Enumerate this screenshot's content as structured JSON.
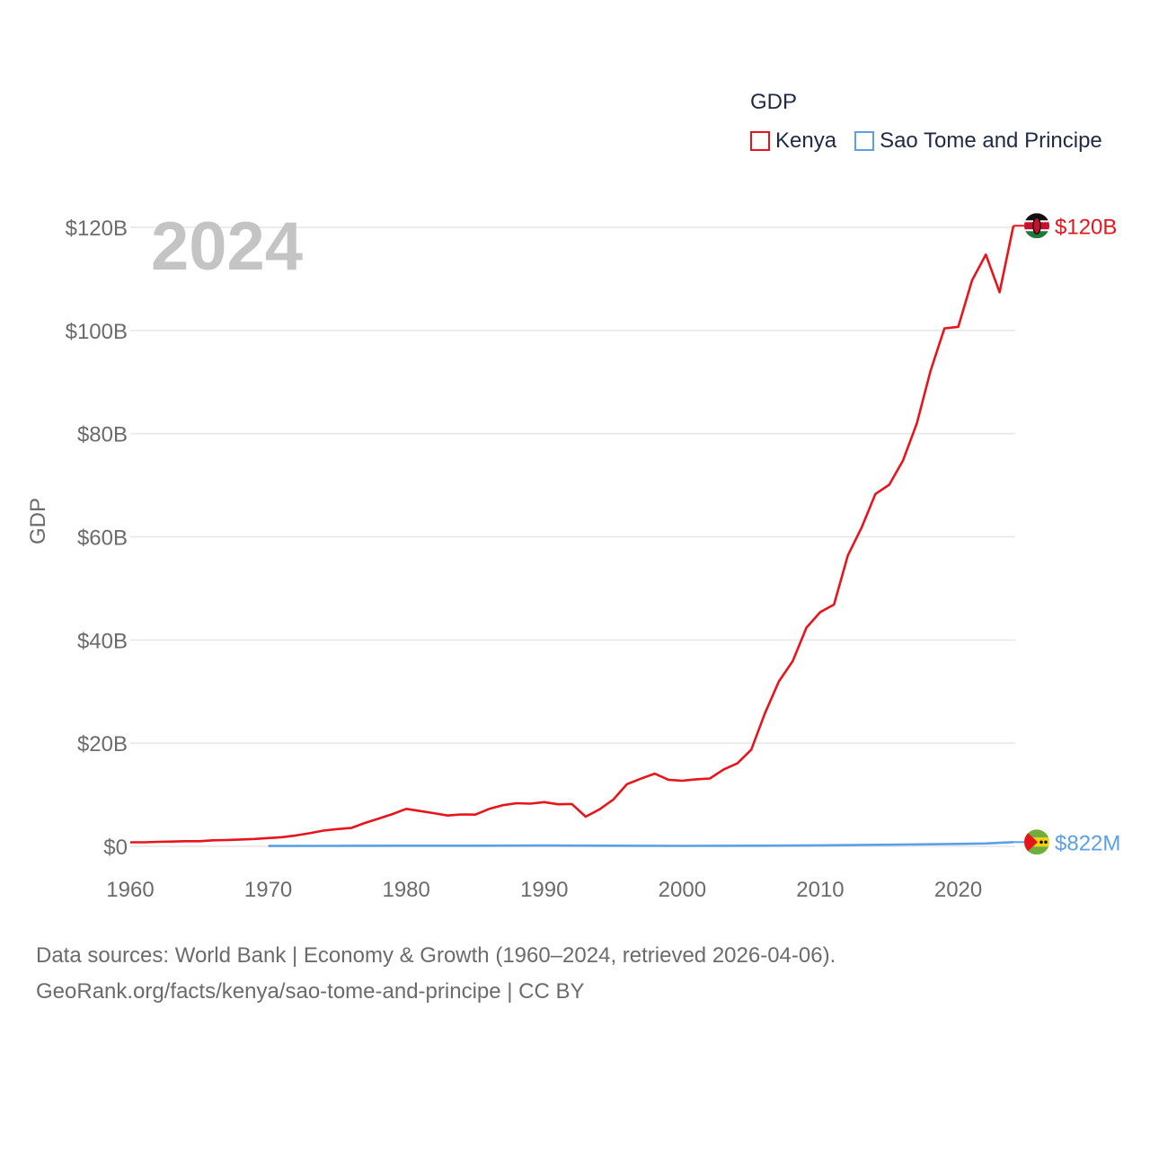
{
  "chart_data": {
    "type": "line",
    "title": "GDP",
    "year_label": "2024",
    "xlabel": "",
    "ylabel": "GDP",
    "xlim": [
      1960,
      2024
    ],
    "ylim": [
      0,
      125
    ],
    "y_unit": "billions USD",
    "x_ticks": [
      1960,
      1970,
      1980,
      1990,
      2000,
      2010,
      2020
    ],
    "y_ticks": [
      0,
      20,
      40,
      60,
      80,
      100,
      120
    ],
    "y_tick_labels": [
      "$0",
      "$20B",
      "$40B",
      "$60B",
      "$80B",
      "$100B",
      "$120B"
    ],
    "grid": true,
    "legend_position": "top-right",
    "series": [
      {
        "name": "Kenya",
        "color": "#e8141c",
        "end_label": "$120B",
        "flag": "kenya-flag-icon",
        "x": [
          1960,
          1961,
          1962,
          1963,
          1964,
          1965,
          1966,
          1967,
          1968,
          1969,
          1970,
          1971,
          1972,
          1973,
          1974,
          1975,
          1976,
          1977,
          1978,
          1979,
          1980,
          1981,
          1982,
          1983,
          1984,
          1985,
          1986,
          1987,
          1988,
          1989,
          1990,
          1991,
          1992,
          1993,
          1994,
          1995,
          1996,
          1997,
          1998,
          1999,
          2000,
          2001,
          2002,
          2003,
          2004,
          2005,
          2006,
          2007,
          2008,
          2009,
          2010,
          2011,
          2012,
          2013,
          2014,
          2015,
          2016,
          2017,
          2018,
          2019,
          2020,
          2021,
          2022,
          2023,
          2024
        ],
        "values": [
          0.79,
          0.79,
          0.87,
          0.93,
          0.99,
          0.99,
          1.16,
          1.22,
          1.33,
          1.42,
          1.6,
          1.78,
          2.11,
          2.55,
          3.04,
          3.35,
          3.56,
          4.53,
          5.39,
          6.26,
          7.27,
          6.85,
          6.43,
          5.98,
          6.19,
          6.14,
          7.24,
          7.97,
          8.36,
          8.28,
          8.57,
          8.15,
          8.21,
          5.75,
          7.15,
          9.05,
          12.05,
          13.12,
          14.09,
          12.9,
          12.71,
          12.99,
          13.15,
          14.9,
          16.1,
          18.74,
          25.83,
          31.96,
          35.9,
          42.4,
          45.4,
          46.87,
          56.4,
          61.8,
          68.3,
          70.1,
          74.8,
          82.0,
          92.2,
          100.4,
          100.7,
          109.7,
          114.7,
          107.4,
          120.3
        ]
      },
      {
        "name": "Sao Tome and Principe",
        "color": "#5aa0e6",
        "end_label": "$822M",
        "flag": "sao-tome-flag-icon",
        "x": [
          1970,
          1975,
          1980,
          1985,
          1990,
          1995,
          2000,
          2005,
          2010,
          2015,
          2020,
          2022,
          2023,
          2024
        ],
        "values": [
          0.07,
          0.09,
          0.13,
          0.13,
          0.15,
          0.12,
          0.08,
          0.13,
          0.2,
          0.32,
          0.47,
          0.55,
          0.68,
          0.82
        ]
      }
    ]
  },
  "footer": {
    "line1": "Data sources: World Bank | Economy & Growth (1960–2024, retrieved 2026-04-06).",
    "line2": "GeoRank.org/facts/kenya/sao-tome-and-principe | CC BY"
  }
}
